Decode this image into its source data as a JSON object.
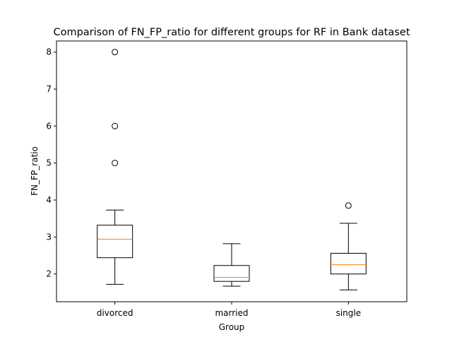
{
  "chart_data": {
    "type": "box",
    "title": "Comparison of FN_FP_ratio for different groups for RF in Bank dataset",
    "xlabel": "Group",
    "ylabel": "FN_FP_ratio",
    "categories": [
      "divorced",
      "married",
      "single"
    ],
    "ylim": [
      1.25,
      8.3
    ],
    "yticks": [
      2,
      3,
      4,
      5,
      6,
      7,
      8
    ],
    "grid": false,
    "colors": {
      "box": "#000000",
      "median": "#ff7f0e",
      "outlier": "#000000"
    },
    "boxes": [
      {
        "name": "divorced",
        "whisker_low": 1.72,
        "q1": 2.44,
        "median": 2.94,
        "q3": 3.32,
        "whisker_high": 3.73,
        "outliers": [
          5.0,
          6.0,
          8.0
        ]
      },
      {
        "name": "married",
        "whisker_low": 1.67,
        "q1": 1.8,
        "median": 1.91,
        "q3": 2.23,
        "whisker_high": 2.82,
        "outliers": []
      },
      {
        "name": "single",
        "whisker_low": 1.57,
        "q1": 2.0,
        "median": 2.25,
        "q3": 2.56,
        "whisker_high": 3.37,
        "outliers": [
          3.85
        ]
      }
    ]
  }
}
